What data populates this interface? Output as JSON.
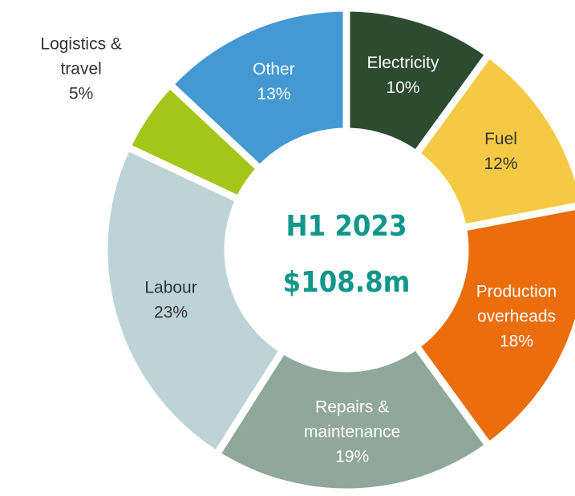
{
  "chart_data": {
    "type": "donut",
    "center_text": [
      "H1 2023",
      "$108.8m"
    ],
    "categories": [
      [
        "Electricity"
      ],
      [
        "Fuel"
      ],
      [
        "Production",
        "overheads"
      ],
      [
        "Repairs &",
        "maintenance"
      ],
      [
        "Labour"
      ],
      [
        "Logistics &",
        "travel"
      ],
      [
        "Other"
      ]
    ],
    "values": [
      10,
      12,
      18,
      19,
      23,
      5,
      13
    ],
    "value_labels": [
      "10%",
      "12%",
      "18%",
      "19%",
      "23%",
      "5%",
      "13%"
    ],
    "colors": [
      "#2d4b31",
      "#f6c945",
      "#ec6d0b",
      "#90a89b",
      "#bdd3d8",
      "#a3c618",
      "#4499d2"
    ],
    "label_colors": [
      "#ffffff",
      "#333333",
      "#ffffff",
      "#ffffff",
      "#333333",
      "#333333",
      "#ffffff"
    ]
  }
}
